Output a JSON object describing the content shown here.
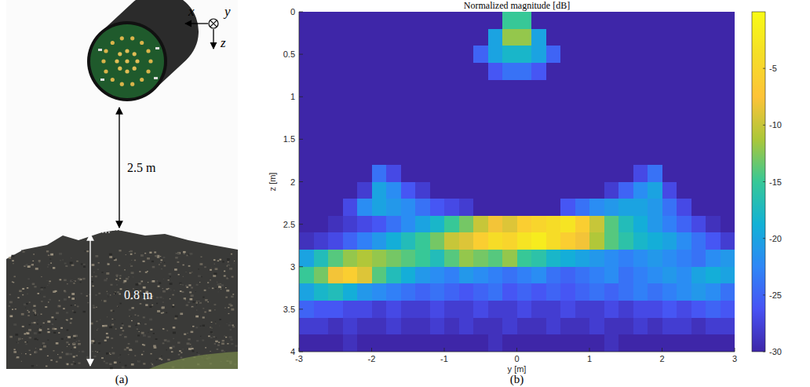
{
  "photo": {
    "axis_labels": [
      "x",
      "y",
      "z"
    ],
    "distance_label": "2.5 m",
    "height_label": "0.8 m",
    "caption": "(a)"
  },
  "chart_data": {
    "type": "heatmap",
    "title": "Normalized magnitude [dB]",
    "xlabel": "y [m]",
    "ylabel": "z [m]",
    "caption": "(b)",
    "xlim": [
      -3,
      3
    ],
    "xticks": [
      -3,
      -2,
      -1,
      0,
      1,
      2,
      3
    ],
    "ylim": [
      0,
      4
    ],
    "yticks": [
      0,
      0.5,
      1,
      1.5,
      2,
      2.5,
      3,
      3.5,
      4
    ],
    "cells": {
      "x": [
        -2.9,
        -2.7,
        -2.5,
        -2.3,
        -2.1,
        -1.9,
        -1.7,
        -1.5,
        -1.3,
        -1.1,
        -0.9,
        -0.7,
        -0.5,
        -0.3,
        -0.1,
        0.1,
        0.3,
        0.5,
        0.7,
        0.9,
        1.1,
        1.3,
        1.5,
        1.7,
        1.9,
        2.1,
        2.3,
        2.5,
        2.7,
        2.9
      ],
      "y": [
        0.1,
        0.3,
        0.5,
        0.7,
        0.9,
        1.1,
        1.3,
        1.5,
        1.7,
        1.9,
        2.1,
        2.3,
        2.5,
        2.7,
        2.9,
        3.1,
        3.3,
        3.5,
        3.7,
        3.9
      ],
      "values": [
        [
          -30,
          -30,
          -30,
          -30,
          -30,
          -30,
          -30,
          -30,
          -30,
          -30,
          -30,
          -30,
          -30,
          -30,
          -15,
          -15,
          -30,
          -30,
          -30,
          -30,
          -30,
          -30,
          -30,
          -30,
          -30,
          -30,
          -30,
          -30,
          -30,
          -30
        ],
        [
          -30,
          -30,
          -30,
          -30,
          -30,
          -30,
          -30,
          -30,
          -30,
          -30,
          -30,
          -30,
          -30,
          -20,
          -12,
          -12,
          -20,
          -30,
          -30,
          -30,
          -30,
          -30,
          -30,
          -30,
          -30,
          -30,
          -30,
          -30,
          -30,
          -30
        ],
        [
          -30,
          -30,
          -30,
          -30,
          -30,
          -30,
          -30,
          -30,
          -30,
          -30,
          -30,
          -30,
          -25,
          -20,
          -18,
          -18,
          -20,
          -25,
          -30,
          -30,
          -30,
          -30,
          -30,
          -30,
          -30,
          -30,
          -30,
          -30,
          -30,
          -30
        ],
        [
          -30,
          -30,
          -30,
          -30,
          -30,
          -30,
          -30,
          -30,
          -30,
          -30,
          -30,
          -30,
          -30,
          -26,
          -24,
          -24,
          -26,
          -30,
          -30,
          -30,
          -30,
          -30,
          -30,
          -30,
          -30,
          -30,
          -30,
          -30,
          -30,
          -30
        ],
        [
          -30,
          -30,
          -30,
          -30,
          -30,
          -30,
          -30,
          -30,
          -30,
          -30,
          -30,
          -30,
          -30,
          -30,
          -30,
          -30,
          -30,
          -30,
          -30,
          -30,
          -30,
          -30,
          -30,
          -30,
          -30,
          -30,
          -30,
          -30,
          -30,
          -30
        ],
        [
          -30,
          -30,
          -30,
          -30,
          -30,
          -30,
          -30,
          -30,
          -30,
          -30,
          -30,
          -30,
          -30,
          -30,
          -30,
          -30,
          -30,
          -30,
          -30,
          -30,
          -30,
          -30,
          -30,
          -30,
          -30,
          -30,
          -30,
          -30,
          -30,
          -30
        ],
        [
          -30,
          -30,
          -30,
          -30,
          -30,
          -30,
          -30,
          -30,
          -30,
          -30,
          -30,
          -30,
          -30,
          -30,
          -30,
          -30,
          -30,
          -30,
          -30,
          -30,
          -30,
          -30,
          -30,
          -30,
          -30,
          -30,
          -30,
          -30,
          -30,
          -30
        ],
        [
          -30,
          -30,
          -30,
          -30,
          -30,
          -30,
          -30,
          -30,
          -30,
          -30,
          -30,
          -30,
          -30,
          -30,
          -30,
          -30,
          -30,
          -30,
          -30,
          -30,
          -30,
          -30,
          -30,
          -30,
          -30,
          -30,
          -30,
          -30,
          -30,
          -30
        ],
        [
          -30,
          -30,
          -30,
          -30,
          -30,
          -30,
          -30,
          -30,
          -30,
          -30,
          -30,
          -30,
          -30,
          -30,
          -30,
          -30,
          -30,
          -30,
          -30,
          -30,
          -30,
          -30,
          -30,
          -30,
          -30,
          -30,
          -30,
          -30,
          -30,
          -30
        ],
        [
          -30,
          -30,
          -30,
          -30,
          -30,
          -24,
          -27,
          -30,
          -30,
          -30,
          -30,
          -30,
          -30,
          -30,
          -30,
          -30,
          -30,
          -30,
          -30,
          -30,
          -30,
          -30,
          -30,
          -27,
          -24,
          -30,
          -30,
          -30,
          -30,
          -30
        ],
        [
          -30,
          -30,
          -30,
          -30,
          -28,
          -20,
          -22,
          -26,
          -28,
          -30,
          -30,
          -30,
          -30,
          -30,
          -30,
          -30,
          -30,
          -30,
          -30,
          -30,
          -30,
          -28,
          -25,
          -22,
          -20,
          -27,
          -30,
          -30,
          -30,
          -30
        ],
        [
          -30,
          -30,
          -30,
          -27,
          -22,
          -20,
          -21,
          -22,
          -24,
          -26,
          -27,
          -28,
          -30,
          -30,
          -30,
          -30,
          -30,
          -30,
          -26,
          -24,
          -22,
          -21,
          -20,
          -20,
          -21,
          -24,
          -27,
          -30,
          -30,
          -30
        ],
        [
          -30,
          -30,
          -29,
          -28,
          -27,
          -26,
          -24,
          -22,
          -20,
          -18,
          -15,
          -13,
          -10,
          -8,
          -9,
          -6,
          -5,
          -4,
          -3,
          -6,
          -10,
          -14,
          -17,
          -19,
          -21,
          -23,
          -25,
          -27,
          -29,
          -30
        ],
        [
          -29,
          -28,
          -27,
          -25,
          -23,
          -21,
          -19,
          -17,
          -15,
          -13,
          -10,
          -9,
          -6,
          -4,
          -5,
          -3,
          -2,
          -4,
          -6,
          -8,
          -11,
          -14,
          -16,
          -18,
          -19,
          -20,
          -22,
          -24,
          -26,
          -28
        ],
        [
          -20,
          -17,
          -14,
          -12,
          -11,
          -12,
          -13,
          -14,
          -15,
          -17,
          -14,
          -12,
          -13,
          -14,
          -12,
          -15,
          -16,
          -18,
          -19,
          -20,
          -21,
          -22,
          -23,
          -22,
          -21,
          -22,
          -23,
          -24,
          -22,
          -21
        ],
        [
          -15,
          -13,
          -8,
          -6,
          -9,
          -14,
          -17,
          -19,
          -21,
          -22,
          -23,
          -21,
          -22,
          -23,
          -24,
          -23,
          -22,
          -24,
          -25,
          -24,
          -23,
          -22,
          -24,
          -23,
          -22,
          -21,
          -22,
          -20,
          -19,
          -20
        ],
        [
          -20,
          -18,
          -17,
          -19,
          -21,
          -22,
          -23,
          -24,
          -25,
          -24,
          -25,
          -26,
          -25,
          -24,
          -26,
          -25,
          -26,
          -25,
          -26,
          -25,
          -24,
          -25,
          -24,
          -23,
          -24,
          -23,
          -22,
          -21,
          -22,
          -24
        ],
        [
          -25,
          -26,
          -26,
          -27,
          -27,
          -28,
          -27,
          -28,
          -28,
          -27,
          -28,
          -28,
          -27,
          -28,
          -28,
          -27,
          -28,
          -28,
          -27,
          -28,
          -28,
          -27,
          -28,
          -27,
          -27,
          -26,
          -27,
          -26,
          -25,
          -26
        ],
        [
          -28,
          -28,
          -29,
          -28,
          -29,
          -29,
          -28,
          -29,
          -29,
          -28,
          -29,
          -28,
          -29,
          -29,
          -28,
          -29,
          -29,
          -28,
          -29,
          -29,
          -28,
          -29,
          -29,
          -28,
          -29,
          -28,
          -28,
          -29,
          -28,
          -28
        ],
        [
          -30,
          -30,
          -30,
          -29,
          -30,
          -30,
          -30,
          -30,
          -30,
          -30,
          -30,
          -30,
          -30,
          -29,
          -30,
          -30,
          -30,
          -30,
          -30,
          -30,
          -30,
          -29,
          -30,
          -30,
          -30,
          -30,
          -30,
          -30,
          -30,
          -30
        ]
      ]
    },
    "colorbar": {
      "lim": [
        -30,
        0
      ],
      "ticks": [
        -5,
        -10,
        -15,
        -20,
        -25,
        -30
      ]
    }
  }
}
